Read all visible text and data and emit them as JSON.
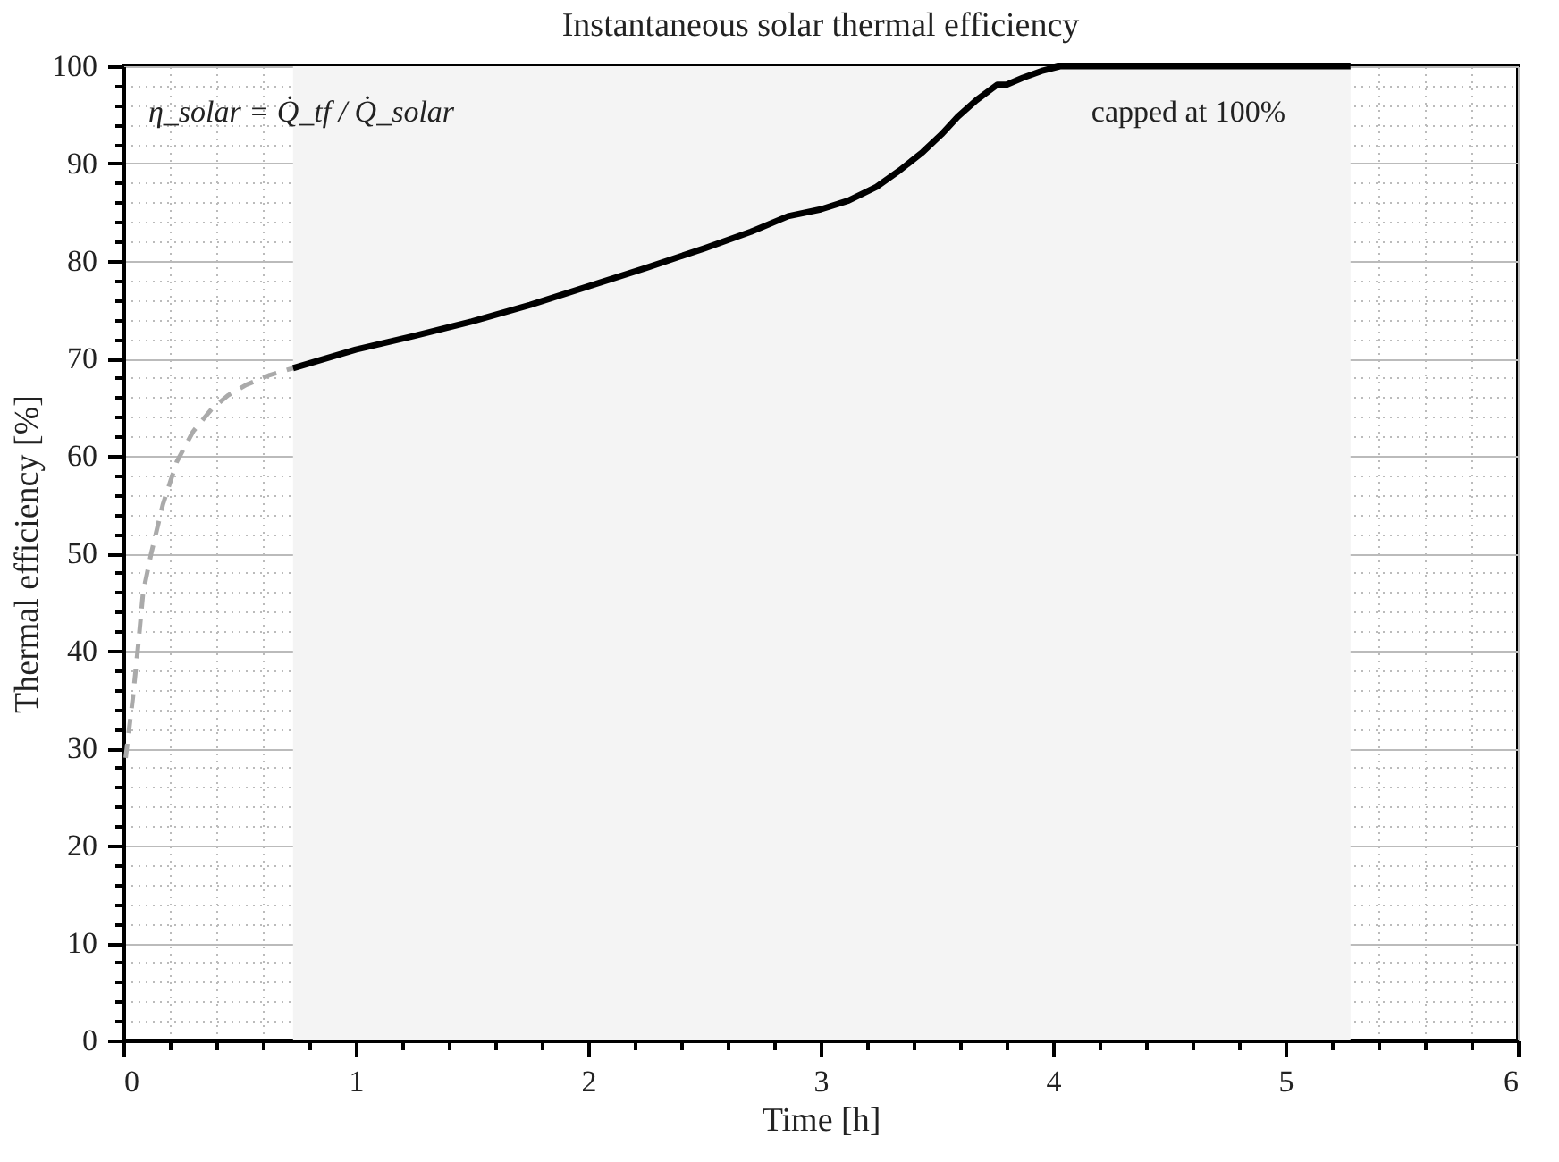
{
  "chart_data": {
    "type": "line",
    "title": "Instantaneous solar thermal efficiency",
    "xlabel": "Time [h]",
    "ylabel": "Thermal efficiency [%]",
    "annotations": [
      "η_solar = Q̇_tf / Q̇_solar",
      "capped at 100%"
    ],
    "series": [
      {
        "color": "#aaaaaa",
        "line_style": "dashed",
        "x": [
          0.01,
          0.02,
          0.04,
          0.06,
          0.085,
          0.12,
          0.17,
          0.23,
          0.3,
          0.38,
          0.45,
          0.53,
          0.63,
          0.73
        ],
        "values": [
          29,
          31,
          35,
          39.6,
          46,
          50,
          55,
          59.4,
          62.5,
          64.8,
          66.2,
          67.3,
          68.3,
          69
        ]
      },
      {
        "color": "#000000",
        "line_style": "solid",
        "x": [
          0.73,
          1.0,
          1.25,
          1.5,
          1.75,
          2.0,
          2.25,
          2.5,
          2.7,
          2.86,
          3.0,
          3.12,
          3.24,
          3.34,
          3.44,
          3.52,
          3.59,
          3.67,
          3.76,
          3.8,
          3.87,
          3.95,
          4.03,
          4.5,
          5.0,
          5.28
        ],
        "values": [
          69,
          70.9,
          72.3,
          73.8,
          75.5,
          77.4,
          79.3,
          81.3,
          83,
          84.6,
          85.3,
          86.2,
          87.6,
          89.3,
          91.2,
          93,
          94.8,
          96.5,
          98.1,
          98.1,
          98.8,
          99.5,
          100,
          100,
          100,
          100
        ]
      }
    ],
    "bands": [
      {
        "axis": "x",
        "from": 0.73,
        "to": 5.28,
        "color": "#f4f4f4"
      }
    ],
    "xlim": [
      0,
      6
    ],
    "ylim": [
      0,
      100
    ],
    "xticks": [
      0,
      {
        "value": 0.2,
        "label": null
      },
      {
        "value": 0.4,
        "label": null
      },
      {
        "value": 0.6,
        "label": null
      },
      {
        "value": 0.8,
        "label": null
      },
      1,
      {
        "value": 1.2,
        "label": null
      },
      {
        "value": 1.4,
        "label": null
      },
      {
        "value": 1.6,
        "label": null
      },
      {
        "value": 1.8,
        "label": null
      },
      2,
      {
        "value": 2.2,
        "label": null
      },
      {
        "value": 2.4,
        "label": null
      },
      {
        "value": 2.6,
        "label": null
      },
      {
        "value": 2.8,
        "label": null
      },
      3,
      {
        "value": 3.2,
        "label": null
      },
      {
        "value": 3.4,
        "label": null
      },
      {
        "value": 3.6,
        "label": null
      },
      {
        "value": 3.8,
        "label": null
      },
      4,
      {
        "value": 4.2,
        "label": null
      },
      {
        "value": 4.4,
        "label": null
      },
      {
        "value": 4.6,
        "label": null
      },
      {
        "value": 4.8,
        "label": null
      },
      5,
      {
        "value": 5.2,
        "label": null
      },
      {
        "value": 5.4,
        "label": null
      },
      {
        "value": 5.6,
        "label": null
      },
      {
        "value": 5.8,
        "label": null
      },
      6
    ],
    "yticks": [
      0,
      {
        "value": 2,
        "label": null
      },
      {
        "value": 4,
        "label": null
      },
      {
        "value": 6,
        "label": null
      },
      {
        "value": 8,
        "label": null
      },
      10,
      {
        "value": 12,
        "label": null
      },
      {
        "value": 14,
        "label": null
      },
      {
        "value": 16,
        "label": null
      },
      {
        "value": 18,
        "label": null
      },
      20,
      {
        "value": 22,
        "label": null
      },
      {
        "value": 24,
        "label": null
      },
      {
        "value": 26,
        "label": null
      },
      {
        "value": 28,
        "label": null
      },
      30,
      {
        "value": 32,
        "label": null
      },
      {
        "value": 34,
        "label": null
      },
      {
        "value": 36,
        "label": null
      },
      {
        "value": 38,
        "label": null
      },
      40,
      {
        "value": 42,
        "label": null
      },
      {
        "value": 44,
        "label": null
      },
      {
        "value": 46,
        "label": null
      },
      {
        "value": 48,
        "label": null
      },
      50,
      {
        "value": 52,
        "label": null
      },
      {
        "value": 54,
        "label": null
      },
      {
        "value": 56,
        "label": null
      },
      {
        "value": 58,
        "label": null
      },
      60,
      {
        "value": 62,
        "label": null
      },
      {
        "value": 64,
        "label": null
      },
      {
        "value": 66,
        "label": null
      },
      {
        "value": 68,
        "label": null
      },
      70,
      {
        "value": 72,
        "label": null
      },
      {
        "value": 74,
        "label": null
      },
      {
        "value": 76,
        "label": null
      },
      {
        "value": 78,
        "label": null
      },
      80,
      {
        "value": 82,
        "label": null
      },
      {
        "value": 84,
        "label": null
      },
      {
        "value": 86,
        "label": null
      },
      {
        "value": 88,
        "label": null
      },
      90,
      {
        "value": 92,
        "label": null
      },
      {
        "value": 94,
        "label": null
      },
      {
        "value": 96,
        "label": null
      },
      {
        "value": 98,
        "label": null
      },
      100
    ],
    "grid": true,
    "marker": "none"
  }
}
